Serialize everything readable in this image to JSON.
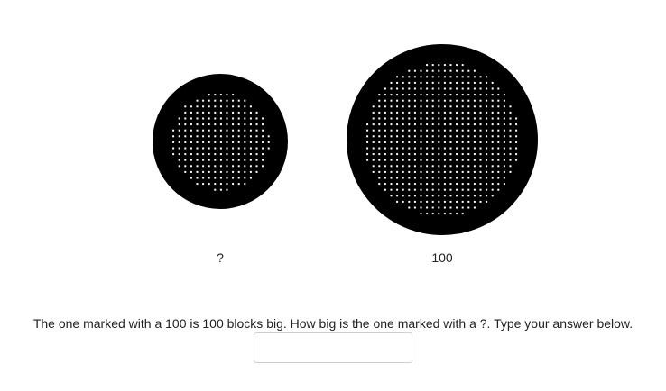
{
  "items": [
    {
      "label": "?",
      "blocks": null
    },
    {
      "label": "100",
      "blocks": 100
    }
  ],
  "question": "The one marked with a 100 is 100 blocks big. How big is the one marked with a ?. Type your answer below.",
  "answer": {
    "value": "",
    "placeholder": ""
  },
  "colors": {
    "disc": "#000000",
    "block": "#ffffff",
    "text": "#222222",
    "background": "#ffffff"
  }
}
